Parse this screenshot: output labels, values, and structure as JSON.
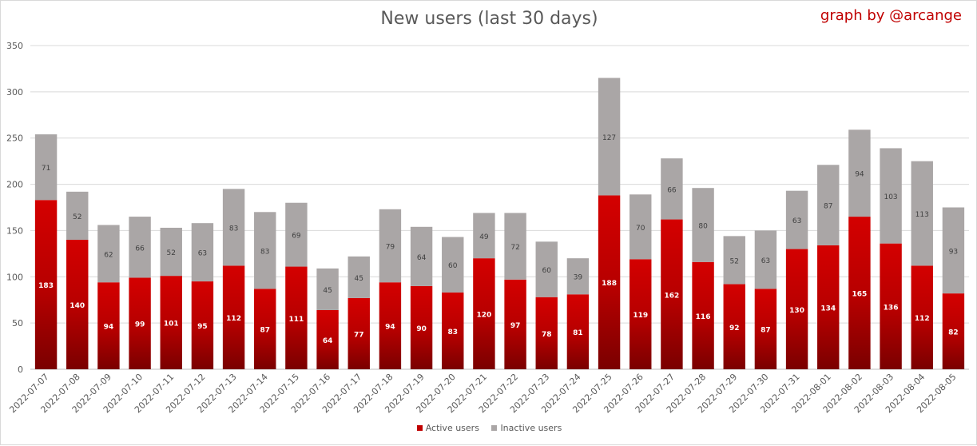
{
  "chart_data": {
    "type": "bar",
    "stacked": true,
    "title": "New users (last 30 days)",
    "credit": "graph by @arcange",
    "categories": [
      "2022-07-07",
      "2022-07-08",
      "2022-07-09",
      "2022-07-10",
      "2022-07-11",
      "2022-07-12",
      "2022-07-13",
      "2022-07-14",
      "2022-07-15",
      "2022-07-16",
      "2022-07-17",
      "2022-07-18",
      "2022-07-19",
      "2022-07-20",
      "2022-07-21",
      "2022-07-22",
      "2022-07-23",
      "2022-07-24",
      "2022-07-25",
      "2022-07-26",
      "2022-07-27",
      "2022-07-28",
      "2022-07-29",
      "2022-07-30",
      "2022-07-31",
      "2022-08-01",
      "2022-08-02",
      "2022-08-03",
      "2022-08-04",
      "2022-08-05"
    ],
    "series": [
      {
        "name": "Active users",
        "color": "#c00000",
        "values": [
          183,
          140,
          94,
          99,
          101,
          95,
          112,
          87,
          111,
          64,
          77,
          94,
          90,
          83,
          120,
          97,
          78,
          81,
          188,
          119,
          162,
          116,
          92,
          87,
          130,
          134,
          165,
          136,
          112,
          82
        ]
      },
      {
        "name": "Inactive users",
        "color": "#aaa6a6",
        "values": [
          71,
          52,
          62,
          66,
          52,
          63,
          83,
          83,
          69,
          45,
          45,
          79,
          64,
          60,
          49,
          72,
          60,
          39,
          127,
          70,
          66,
          80,
          52,
          63,
          63,
          87,
          94,
          103,
          113,
          93
        ]
      }
    ],
    "ylim": [
      0,
      350
    ],
    "yticks": [
      0,
      50,
      100,
      150,
      200,
      250,
      300,
      350
    ],
    "grid": true,
    "legend_position": "bottom",
    "xlabel": "",
    "ylabel": ""
  }
}
